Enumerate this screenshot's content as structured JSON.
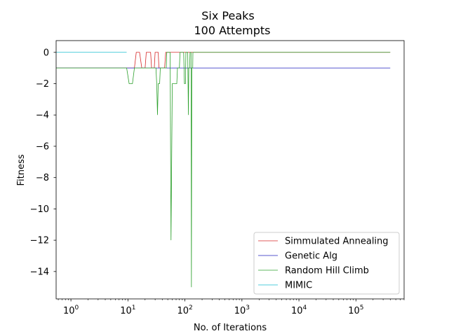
{
  "chart_data": {
    "type": "line",
    "title": "Six Peaks",
    "subtitle": "100 Attempts",
    "xlabel": "No. of Iterations",
    "ylabel": "Fitness",
    "xscale": "log",
    "xlim": [
      0.55,
      700000
    ],
    "ylim": [
      -15.75,
      0.75
    ],
    "x_ticks": [
      {
        "value": 1,
        "base": "10",
        "exp": "0"
      },
      {
        "value": 10,
        "base": "10",
        "exp": "1"
      },
      {
        "value": 100,
        "base": "10",
        "exp": "2"
      },
      {
        "value": 1000,
        "base": "10",
        "exp": "3"
      },
      {
        "value": 10000,
        "base": "10",
        "exp": "4"
      },
      {
        "value": 100000,
        "base": "10",
        "exp": "5"
      }
    ],
    "y_ticks": [
      {
        "value": 0,
        "label": "0"
      },
      {
        "value": -2,
        "label": "−2"
      },
      {
        "value": -4,
        "label": "−4"
      },
      {
        "value": -6,
        "label": "−6"
      },
      {
        "value": -8,
        "label": "−8"
      },
      {
        "value": -10,
        "label": "−10"
      },
      {
        "value": -12,
        "label": "−12"
      },
      {
        "value": -14,
        "label": "−14"
      }
    ],
    "grid": false,
    "legend_position": "lower right",
    "series": [
      {
        "name": "Simmulated Annealing",
        "color": "#d62728",
        "points": [
          [
            0.55,
            -1
          ],
          [
            13,
            -1
          ],
          [
            14,
            0
          ],
          [
            16,
            0
          ],
          [
            17.5,
            -1
          ],
          [
            20,
            -1
          ],
          [
            21,
            0
          ],
          [
            25,
            0
          ],
          [
            26,
            -1
          ],
          [
            29,
            -1
          ],
          [
            30,
            0
          ],
          [
            34,
            0
          ],
          [
            35,
            -1
          ],
          [
            44,
            -1
          ],
          [
            46,
            0
          ],
          [
            400000,
            0
          ]
        ]
      },
      {
        "name": "Genetic Alg",
        "color": "#1f1fbf",
        "points": [
          [
            0.55,
            -1
          ],
          [
            40,
            -1
          ],
          [
            41,
            -1
          ],
          [
            400000,
            -1
          ]
        ]
      },
      {
        "name": "Random Hill Climb",
        "color": "#2ca02c",
        "points": [
          [
            0.55,
            -1
          ],
          [
            9.5,
            -1
          ],
          [
            10.5,
            -2
          ],
          [
            12,
            -2
          ],
          [
            13,
            -1
          ],
          [
            31,
            -1
          ],
          [
            32,
            -2
          ],
          [
            33,
            -4
          ],
          [
            34,
            -2
          ],
          [
            36,
            -2
          ],
          [
            37,
            -1
          ],
          [
            47,
            -1
          ],
          [
            48,
            0
          ],
          [
            55,
            0
          ],
          [
            57,
            -12
          ],
          [
            60,
            -2
          ],
          [
            72,
            -2
          ],
          [
            74,
            -1
          ],
          [
            80,
            -1
          ],
          [
            82,
            0
          ],
          [
            95,
            0
          ],
          [
            98,
            -2
          ],
          [
            102,
            -2
          ],
          [
            104,
            0
          ],
          [
            112,
            0
          ],
          [
            115,
            -4
          ],
          [
            117,
            -1
          ],
          [
            121,
            -1
          ],
          [
            123,
            0
          ],
          [
            128,
            0
          ],
          [
            130,
            -15
          ],
          [
            132,
            -1
          ],
          [
            137,
            -1
          ],
          [
            138,
            0
          ],
          [
            400000,
            0
          ]
        ]
      },
      {
        "name": "MIMIC",
        "color": "#17becf",
        "points": [
          [
            0.55,
            0
          ],
          [
            9.5,
            0
          ]
        ]
      }
    ]
  }
}
